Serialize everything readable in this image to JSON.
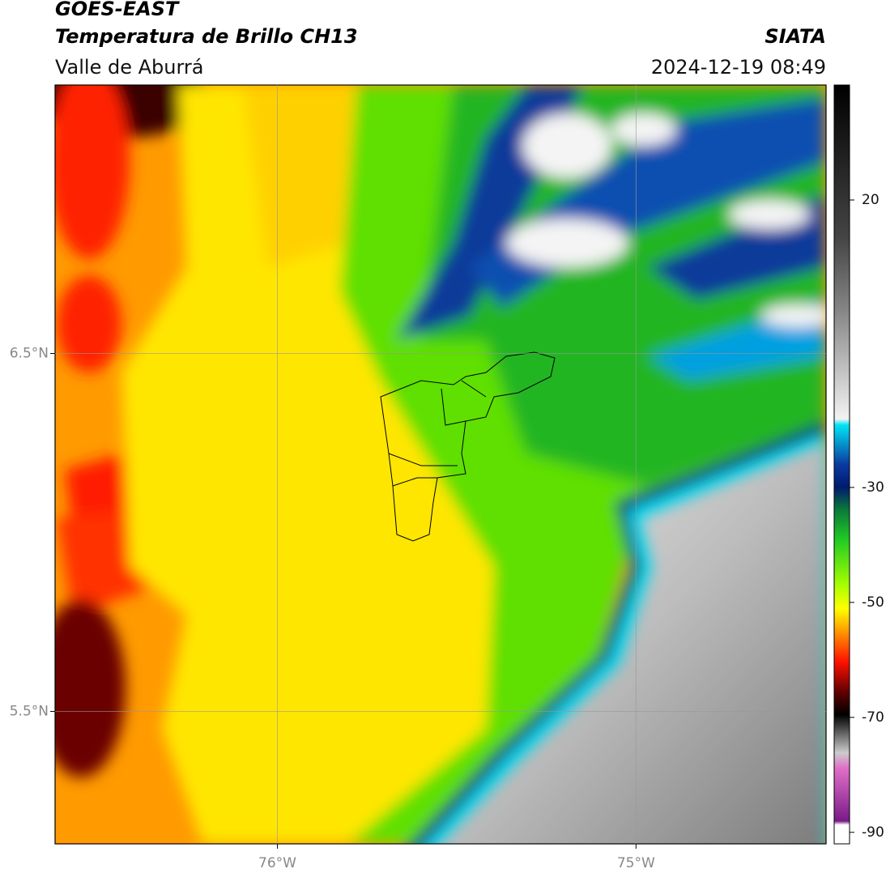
{
  "header": {
    "title": "GOES-EAST",
    "subtitle": "Temperatura de Brillo CH13",
    "region": "Valle de Aburrá",
    "source": "SIATA",
    "datetime": "2024-12-19 08:49"
  },
  "map": {
    "xlim": [
      -76.62,
      -74.47
    ],
    "ylim": [
      5.13,
      7.25
    ],
    "xticks": [
      {
        "value": -76,
        "label": "76°W"
      },
      {
        "value": -75,
        "label": "75°W"
      }
    ],
    "yticks": [
      {
        "value": 5.5,
        "label": "5.5°N"
      },
      {
        "value": 6.5,
        "label": "6.5°N"
      }
    ]
  },
  "colorbar": {
    "lim": [
      -92,
      40
    ],
    "ticks": [
      20,
      -30,
      -50,
      -70,
      -90
    ]
  }
}
